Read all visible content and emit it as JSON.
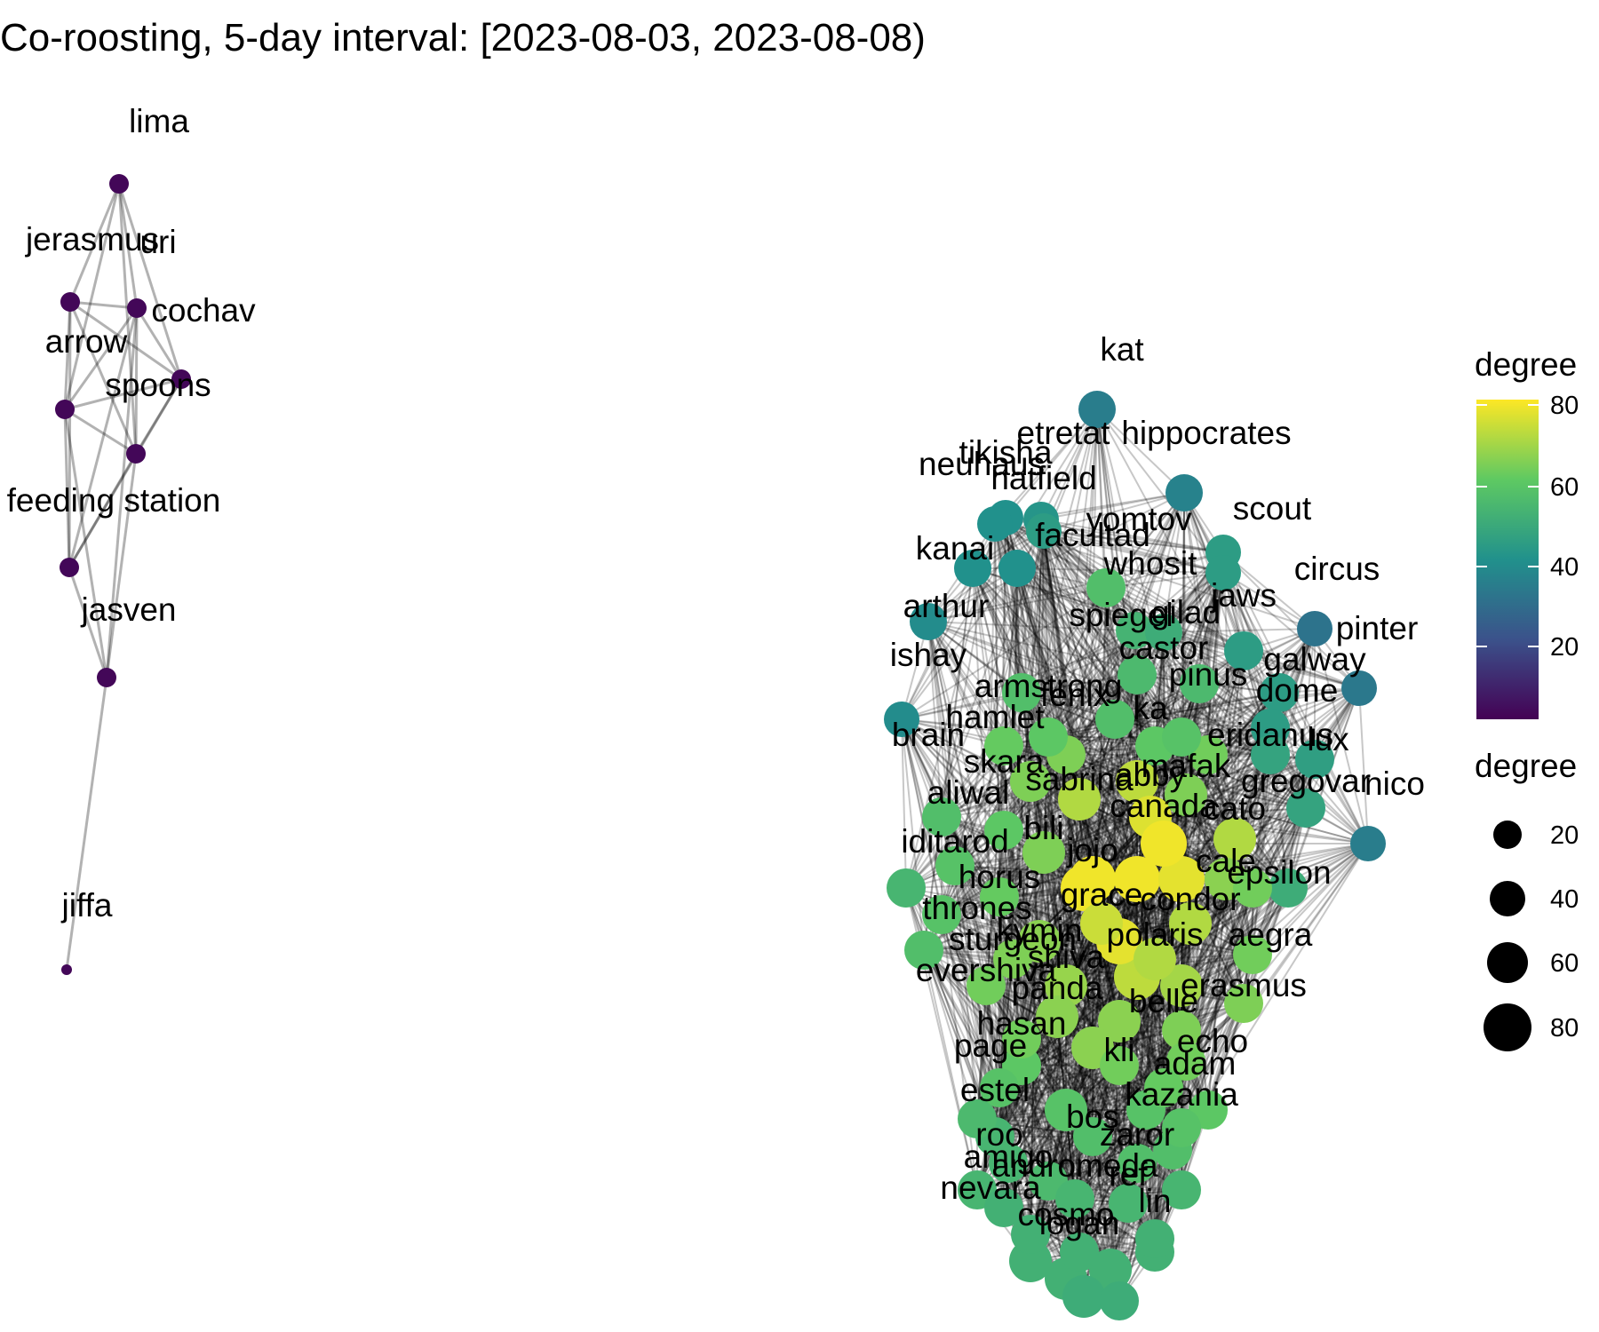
{
  "title": "Co-roosting, 5-day interval: [2023-08-03, 2023-08-08)",
  "legend": {
    "color_title": "degree",
    "color_ticks": [
      "80",
      "60",
      "40",
      "20"
    ],
    "size_title": "degree",
    "size_ticks": [
      "20",
      "40",
      "60",
      "80"
    ],
    "colorscale": "viridis",
    "degree_range": [
      1,
      82
    ]
  },
  "labels": [
    "lima",
    "jerasmus",
    "uri",
    "cochav",
    "arrow",
    "spoons",
    "feeding station",
    "jasven",
    "jiffa",
    "kat",
    "hippocrates",
    "tikisha",
    "etretat",
    "hatfield",
    "neuhaus",
    "yomtov",
    "scout",
    "facultad",
    "kanai",
    "whosit",
    "circus",
    "jaws",
    "arthur",
    "spiegel",
    "gilad",
    "pinter",
    "castor",
    "ishay",
    "galway",
    "pinus",
    "armstrong",
    "dome",
    "fenix",
    "hamlet",
    "ka",
    "eridanus",
    "brain",
    "lux",
    "skara",
    "mafak",
    "nico",
    "aliwal",
    "sabrina",
    "abby",
    "gregovar",
    "canada",
    "cato",
    "iditarod",
    "bili",
    "jojo",
    "cale",
    "epsilon",
    "horus",
    "thrones",
    "grace",
    "condor",
    "kymin",
    "sturgeon",
    "polaris",
    "aegra",
    "evershiva",
    "shiva",
    "panda",
    "erasmus",
    "hasan",
    "belle",
    "echo",
    "page",
    "kli",
    "adam",
    "estel",
    "kazania",
    "bos",
    "zaror",
    "roo",
    "amigo",
    "andromeda",
    "nevara",
    "ref",
    "cosmo",
    "lin",
    "logan"
  ]
}
